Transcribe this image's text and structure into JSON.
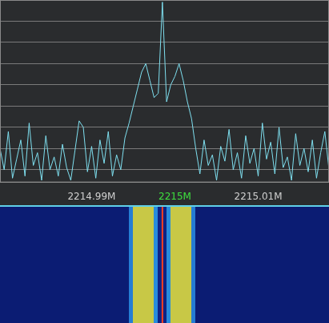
{
  "chart_data": [
    {
      "type": "line",
      "x": [
        2214.979,
        2214.9795,
        2214.98,
        2214.9805,
        2214.981,
        2214.9815,
        2214.982,
        2214.9825,
        2214.983,
        2214.9835,
        2214.984,
        2214.9845,
        2214.985,
        2214.9855,
        2214.986,
        2214.9865,
        2214.987,
        2214.9875,
        2214.988,
        2214.9885,
        2214.989,
        2214.9895,
        2214.99,
        2214.9905,
        2214.991,
        2214.9915,
        2214.992,
        2214.9925,
        2214.993,
        2214.9935,
        2214.994,
        2214.9945,
        2214.995,
        2214.9955,
        2214.996,
        2214.9965,
        2214.997,
        2214.9975,
        2214.998,
        2214.9985,
        2214.999,
        2214.9995,
        2215,
        2215.0005,
        2215.001,
        2215.0015,
        2215.002,
        2215.0025,
        2215.003,
        2215.0035,
        2215.004,
        2215.0045,
        2215.005,
        2215.0055,
        2215.006,
        2215.0065,
        2215.007,
        2215.0075,
        2215.008,
        2215.0085,
        2215.009,
        2215.0095,
        2215.01,
        2215.0105,
        2215.011,
        2215.0115,
        2215.012,
        2215.0125,
        2215.013,
        2215.0135,
        2215.014,
        2215.0145,
        2215.015,
        2215.0155,
        2215.016,
        2215.0165,
        2215.017,
        2215.0175,
        2215.018,
        2215.0185
      ],
      "values": [
        -70,
        -80,
        -62,
        -84,
        -75,
        -66,
        -83,
        -58,
        -78,
        -72,
        -85,
        -64,
        -80,
        -74,
        -83,
        -68,
        -79,
        -85,
        -71,
        -57,
        -60,
        -81,
        -69,
        -84,
        -66,
        -77,
        -62,
        -83,
        -73,
        -80,
        -65,
        -58,
        -50,
        -42,
        -34,
        -30,
        -38,
        -46,
        -44,
        -1,
        -48,
        -40,
        -36,
        -30,
        -38,
        -48,
        -56,
        -70,
        -82,
        -66,
        -78,
        -73,
        -85,
        -69,
        -76,
        -61,
        -80,
        -72,
        -84,
        -64,
        -77,
        -70,
        -83,
        -58,
        -75,
        -67,
        -82,
        -60,
        -79,
        -74,
        -85,
        -63,
        -78,
        -70,
        -81,
        -66,
        -84,
        -72,
        -62,
        -80
      ],
      "color": "#7fe0f0",
      "xlim": [
        2214.979,
        2215.0185
      ],
      "xticks": [
        {
          "value": 2214.99,
          "label": "2214.99M"
        },
        {
          "value": 2215,
          "label": "2215M"
        },
        {
          "value": 2215.01,
          "label": "2215.01M"
        }
      ],
      "ylim": [
        -86,
        0
      ],
      "yticks": [
        -80,
        -70,
        -60,
        -50,
        -40,
        -30,
        -20,
        -10
      ],
      "grid": true,
      "tick_labels": "x"
    },
    {
      "type": "heatmap",
      "bins": [
        2214.979,
        2214.9795,
        2214.98,
        2214.9805,
        2214.981,
        2214.9815,
        2214.982,
        2214.9825,
        2214.983,
        2214.9835,
        2214.984,
        2214.9845,
        2214.985,
        2214.9855,
        2214.986,
        2214.9865,
        2214.987,
        2214.9875,
        2214.988,
        2214.9885,
        2214.989,
        2214.9895,
        2214.99,
        2214.9905,
        2214.991,
        2214.9915,
        2214.992,
        2214.9925,
        2214.993,
        2214.9935,
        2214.994,
        2214.9945,
        2214.995,
        2214.9955,
        2214.996,
        2214.9965,
        2214.997,
        2214.9975,
        2214.998,
        2214.9985,
        2214.999,
        2214.9995,
        2215,
        2215.0005,
        2215.001,
        2215.0015,
        2215.002,
        2215.0025,
        2215.003,
        2215.0035,
        2215.004,
        2215.0045,
        2215.005,
        2215.0055,
        2215.006,
        2215.0065,
        2215.007,
        2215.0075,
        2215.008,
        2215.0085,
        2215.009,
        2215.0095,
        2215.01,
        2215.0105,
        2215.011,
        2215.0115,
        2215.012,
        2215.0125,
        2215.013,
        2215.0135,
        2215.014,
        2215.0145,
        2215.015,
        2215.0155,
        2215.016,
        2215.0165,
        2215.017,
        2215.0175,
        2215.018,
        2215.0185
      ],
      "values": [
        0.15,
        0.15,
        0.15,
        0.15,
        0.15,
        0.15,
        0.15,
        0.15,
        0.15,
        0.15,
        0.15,
        0.15,
        0.15,
        0.15,
        0.15,
        0.15,
        0.15,
        0.15,
        0.15,
        0.15,
        0.15,
        0.15,
        0.15,
        0.15,
        0.15,
        0.15,
        0.15,
        0.15,
        0.15,
        0.15,
        0.15,
        0.55,
        0.85,
        0.85,
        0.85,
        0.85,
        0.85,
        0.6,
        0.2,
        0.2,
        0.6,
        0.85,
        0.85,
        0.85,
        0.85,
        0.85,
        0.55,
        0.15,
        0.15,
        0.15,
        0.15,
        0.15,
        0.15,
        0.15,
        0.15,
        0.15,
        0.15,
        0.15,
        0.15,
        0.15,
        0.15,
        0.15,
        0.15,
        0.15,
        0.15,
        0.15,
        0.15,
        0.15,
        0.15,
        0.15,
        0.15,
        0.15,
        0.15,
        0.15,
        0.15,
        0.15,
        0.15,
        0.15,
        0.15
      ],
      "zlim": [
        0,
        1
      ],
      "tuned_frequency": 2214.9985,
      "xlim": [
        2214.979,
        2215.0185
      ]
    }
  ]
}
